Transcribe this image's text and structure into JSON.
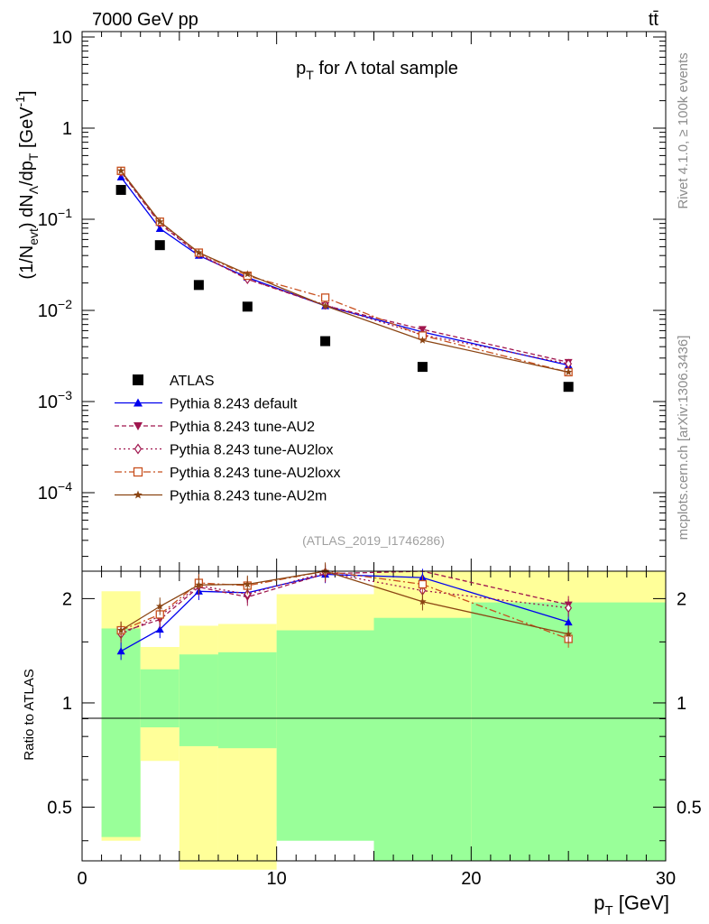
{
  "header": {
    "left": "7000 GeV pp",
    "right": "tt̄"
  },
  "side_text": {
    "rivet": "Rivet 4.1.0, ≥ 100k events",
    "mcplots": "mcplots.cern.ch [arXiv:1306.3436]"
  },
  "chart_data": [
    {
      "type": "line",
      "panel": "main",
      "title": "p_T for Λ total sample",
      "title_parts": {
        "p": "p",
        "sub": "T",
        "rest": " for Λ total sample"
      },
      "ylabel": "(1/N_evt) dN_Λ/dp_T [GeV^-1]",
      "ylabel_parts": {
        "a": "(1/N",
        "b": "evt",
        "c": ") dN",
        "d": "Λ",
        "e": "/dp",
        "f": "T",
        "g": " [GeV",
        "h": "-1",
        "i": "]"
      },
      "yscale": "log",
      "ylim": [
        2e-05,
        12
      ],
      "xlim": [
        0,
        30
      ],
      "ytick_labels": {
        "t10": "10",
        "t1": "1",
        "tm1": {
          "base": "10",
          "exp": "−1"
        },
        "tm2": {
          "base": "10",
          "exp": "−2"
        },
        "tm3": {
          "base": "10",
          "exp": "−3"
        },
        "tm4": {
          "base": "10",
          "exp": "−4"
        }
      },
      "annotation": "(ATLAS_2019_I1746286)",
      "legend_position": "lower-left",
      "series": [
        {
          "name": "ATLAS",
          "color": "#000000",
          "marker": "square",
          "x": [
            2,
            4,
            6,
            8.5,
            12.5,
            17.5,
            25
          ],
          "y": [
            0.21,
            0.052,
            0.019,
            0.011,
            0.0046,
            0.0024,
            0.00145
          ]
        },
        {
          "name": "Pythia 8.243 default",
          "color": "#0000ee",
          "marker": "triangle-up",
          "dash": "",
          "x": [
            2,
            4,
            6,
            8.5,
            12.5,
            17.5,
            25
          ],
          "y": [
            0.29,
            0.079,
            0.04,
            0.023,
            0.0112,
            0.0058,
            0.0025
          ]
        },
        {
          "name": "Pythia 8.243 tune-AU2",
          "color": "#a0164e",
          "marker": "triangle-down",
          "dash": "5,3",
          "x": [
            2,
            4,
            6,
            8.5,
            12.5,
            17.5,
            25
          ],
          "y": [
            0.33,
            0.089,
            0.041,
            0.022,
            0.0113,
            0.0062,
            0.0027
          ]
        },
        {
          "name": "Pythia 8.243 tune-AU2lox",
          "color": "#a0164e",
          "marker": "diamond",
          "dash": "2,3",
          "x": [
            2,
            4,
            6,
            8.5,
            12.5,
            17.5,
            25
          ],
          "y": [
            0.33,
            0.092,
            0.042,
            0.022,
            0.0115,
            0.0054,
            0.0026
          ]
        },
        {
          "name": "Pythia 8.243 tune-AU2loxx",
          "color": "#c8501e",
          "marker": "square-open",
          "dash": "8,3,2,3",
          "x": [
            2,
            4,
            6,
            8.5,
            12.5,
            17.5,
            25
          ],
          "y": [
            0.34,
            0.094,
            0.043,
            0.024,
            0.0138,
            0.0053,
            0.0021
          ]
        },
        {
          "name": "Pythia 8.243 tune-AU2m",
          "color": "#8b4513",
          "marker": "star",
          "dash": "",
          "x": [
            2,
            4,
            6,
            8.5,
            12.5,
            17.5,
            25
          ],
          "y": [
            0.34,
            0.094,
            0.043,
            0.025,
            0.0112,
            0.0047,
            0.0021
          ]
        }
      ]
    },
    {
      "type": "line",
      "panel": "ratio",
      "ylabel": "Ratio to ATLAS",
      "xlabel": "p_T [GeV]",
      "xlabel_parts": {
        "p": "p",
        "sub": "T",
        "rest": " [GeV]"
      },
      "yscale": "log",
      "ylim": [
        0.35,
        2.4
      ],
      "xlim": [
        0,
        30
      ],
      "yticks": [
        0.5,
        1,
        2
      ],
      "ytick_labels": [
        "0.5",
        "1",
        "2"
      ],
      "xticks": [
        0,
        10,
        20,
        30
      ],
      "xtick_labels": [
        "0",
        "10",
        "20",
        "30"
      ],
      "bands": [
        {
          "x0": 1,
          "x1": 3,
          "yellow": [
            0.4,
            2.1
          ],
          "green": [
            0.41,
            1.64
          ]
        },
        {
          "x0": 3,
          "x1": 5,
          "yellow": [
            0.68,
            1.45
          ],
          "green": [
            0.85,
            1.25
          ]
        },
        {
          "x0": 5,
          "x1": 7,
          "yellow": [
            0.33,
            1.67
          ],
          "green": [
            0.75,
            1.38
          ]
        },
        {
          "x0": 7,
          "x1": 10,
          "yellow": [
            0.33,
            1.69
          ],
          "green": [
            0.74,
            1.4
          ]
        },
        {
          "x0": 10,
          "x1": 15,
          "yellow": [
            0.44,
            2.06
          ],
          "green": [
            0.4,
            1.62
          ]
        },
        {
          "x0": 15,
          "x1": 20,
          "yellow": [
            0.35,
            2.4
          ],
          "green": [
            0.35,
            1.76
          ]
        },
        {
          "x0": 20,
          "x1": 30,
          "yellow": [
            0.35,
            2.4
          ],
          "green": [
            0.35,
            1.95
          ]
        }
      ],
      "series": [
        {
          "name": "Pythia 8.243 default",
          "color": "#0000ee",
          "marker": "triangle-up",
          "dash": "",
          "x": [
            2,
            4,
            6,
            8.5,
            12.5,
            17.5,
            25
          ],
          "y": [
            1.41,
            1.63,
            2.1,
            2.08,
            2.35,
            2.3,
            1.71
          ]
        },
        {
          "name": "Pythia 8.243 tune-AU2",
          "color": "#a0164e",
          "marker": "triangle-down",
          "dash": "5,3",
          "x": [
            2,
            4,
            6,
            8.5,
            12.5,
            17.5,
            25
          ],
          "y": [
            1.6,
            1.74,
            2.16,
            2.02,
            2.36,
            2.5,
            1.92
          ]
        },
        {
          "name": "Pythia 8.243 tune-AU2lox",
          "color": "#a0164e",
          "marker": "diamond",
          "dash": "2,3",
          "x": [
            2,
            4,
            6,
            8.5,
            12.5,
            17.5,
            25
          ],
          "y": [
            1.58,
            1.78,
            2.18,
            2.06,
            2.38,
            2.11,
            1.88
          ]
        },
        {
          "name": "Pythia 8.243 tune-AU2loxx",
          "color": "#c8501e",
          "marker": "square-open",
          "dash": "8,3,2,3",
          "x": [
            2,
            4,
            6,
            8.5,
            12.5,
            17.5,
            25
          ],
          "y": [
            1.62,
            1.8,
            2.22,
            2.18,
            2.42,
            2.2,
            1.53
          ]
        },
        {
          "name": "Pythia 8.243 tune-AU2m",
          "color": "#8b4513",
          "marker": "star",
          "dash": "",
          "x": [
            2,
            4,
            6,
            8.5,
            12.5,
            17.5,
            25
          ],
          "y": [
            1.62,
            1.9,
            2.19,
            2.2,
            2.4,
            1.96,
            1.58
          ]
        }
      ]
    }
  ]
}
